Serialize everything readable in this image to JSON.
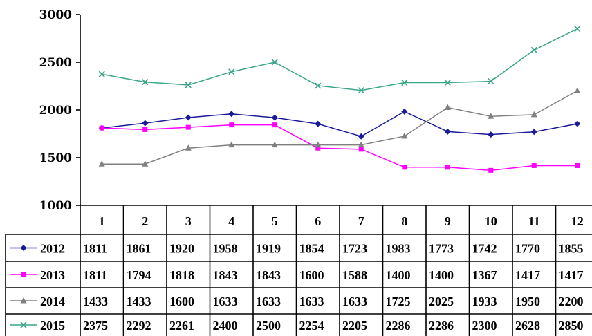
{
  "chart_data": {
    "type": "line",
    "title": "",
    "xlabel": "",
    "ylabel": "",
    "ylim": [
      1000,
      3000
    ],
    "yticks": [
      "1000",
      "1500",
      "2000",
      "2500",
      "3000"
    ],
    "categories": [
      "1",
      "2",
      "3",
      "4",
      "5",
      "6",
      "7",
      "8",
      "9",
      "10",
      "11",
      "12"
    ],
    "legend_placement": "data-table",
    "series": [
      {
        "name": "2012",
        "color": "#1a1a99",
        "marker": "diamond",
        "values": [
          1811,
          1861,
          1920,
          1958,
          1919,
          1854,
          1723,
          1983,
          1773,
          1742,
          1770,
          1855
        ]
      },
      {
        "name": "2013",
        "color": "#ff00ff",
        "marker": "square",
        "values": [
          1811,
          1794,
          1818,
          1843,
          1843,
          1600,
          1588,
          1400,
          1400,
          1367,
          1417,
          1417
        ]
      },
      {
        "name": "2014",
        "color": "#808080",
        "marker": "triangle",
        "values": [
          1433,
          1433,
          1600,
          1633,
          1633,
          1633,
          1633,
          1725,
          2025,
          1933,
          1950,
          2200
        ]
      },
      {
        "name": "2015",
        "color": "#3aa58a",
        "marker": "x",
        "values": [
          2375,
          2292,
          2261,
          2400,
          2500,
          2254,
          2205,
          2286,
          2286,
          2300,
          2628,
          2850
        ]
      }
    ]
  }
}
